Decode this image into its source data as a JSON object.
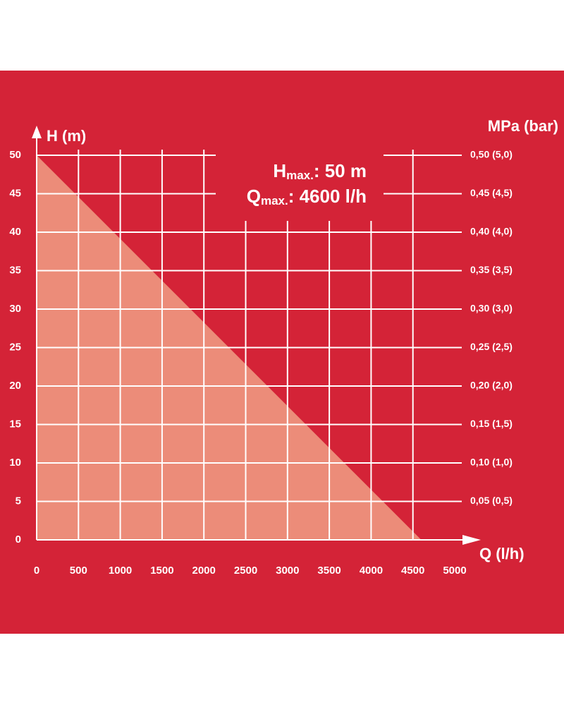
{
  "chart_data": {
    "type": "area",
    "x_label": "Q (l/h)",
    "y_label": "H (m)",
    "y2_label": "MPa (bar)",
    "annotations": [
      {
        "main": "H",
        "sub": "max.",
        "text": ": 50 m"
      },
      {
        "main": "Q",
        "sub": "max.",
        "text": ": 4600 l/h"
      }
    ],
    "series": [
      {
        "color": "#ec8c79",
        "x": [
          0,
          4600
        ],
        "values": [
          50,
          0
        ]
      }
    ],
    "xlim": [
      0,
      5000
    ],
    "xticks": [
      0,
      500,
      1000,
      1500,
      2000,
      2500,
      3000,
      3500,
      4000,
      4500,
      5000
    ],
    "ylim": [
      0,
      50
    ],
    "yticks": [
      0,
      5,
      10,
      15,
      20,
      25,
      30,
      35,
      40,
      45,
      50
    ],
    "y2lim": [
      0,
      0.5
    ],
    "y2ticks": [
      {
        "value": 0.05,
        "label": "0,05 (0,5)"
      },
      {
        "value": 0.1,
        "label": "0,10 (1,0)"
      },
      {
        "value": 0.15,
        "label": "0,15 (1,5)"
      },
      {
        "value": 0.2,
        "label": "0,20 (2,0)"
      },
      {
        "value": 0.25,
        "label": "0,25 (2,5)"
      },
      {
        "value": 0.3,
        "label": "0,30 (3,0)"
      },
      {
        "value": 0.35,
        "label": "0,35 (3,5)"
      },
      {
        "value": 0.4,
        "label": "0,40 (4,0)"
      },
      {
        "value": 0.45,
        "label": "0,45 (4,5)"
      },
      {
        "value": 0.5,
        "label": "0,50 (5,0)"
      }
    ],
    "grid": true,
    "background": "#d42337",
    "grid_color": "#ffffff"
  }
}
